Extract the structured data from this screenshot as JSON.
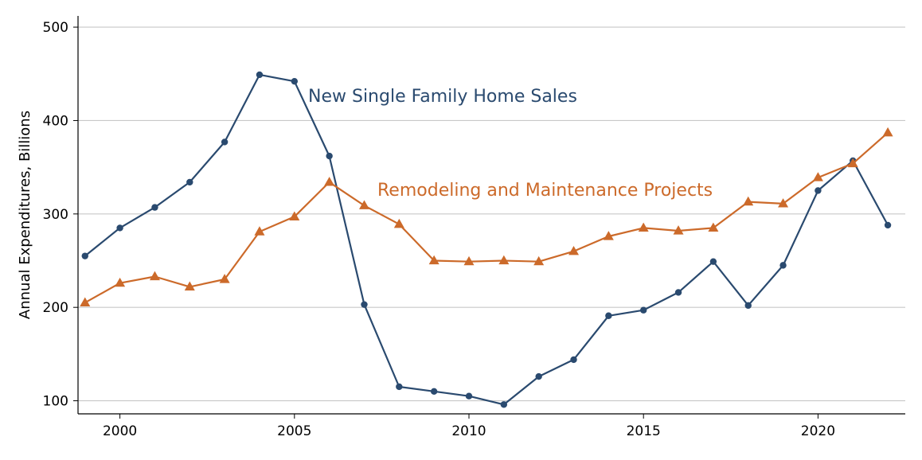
{
  "chart_data": {
    "type": "line",
    "title": "",
    "xlabel": "",
    "ylabel": "Annual Expenditures, Billions",
    "x": [
      1999,
      2000,
      2001,
      2002,
      2003,
      2004,
      2005,
      2006,
      2007,
      2008,
      2009,
      2010,
      2011,
      2012,
      2013,
      2014,
      2015,
      2016,
      2017,
      2018,
      2019,
      2020,
      2021,
      2022
    ],
    "xlim": [
      1998.8,
      2022.5
    ],
    "ylim": [
      86,
      512
    ],
    "x_ticks": [
      2000,
      2005,
      2010,
      2015,
      2020
    ],
    "y_ticks": [
      100,
      200,
      300,
      400,
      500
    ],
    "grid": "horizontal",
    "legend": "none",
    "series": [
      {
        "name": "New Single Family Home Sales",
        "color": "#2a4a6f",
        "marker": "circle",
        "values": [
          255,
          285,
          307,
          334,
          377,
          449,
          442,
          362,
          203,
          115,
          110,
          105,
          96,
          126,
          144,
          191,
          197,
          216,
          249,
          202,
          245,
          325,
          357,
          288
        ]
      },
      {
        "name": "Remodeling and Maintenance Projects",
        "color": "#cc6a2a",
        "marker": "triangle",
        "values": [
          205,
          226,
          233,
          222,
          230,
          281,
          297,
          334,
          309,
          289,
          250,
          249,
          250,
          249,
          260,
          276,
          285,
          282,
          285,
          313,
          311,
          339,
          354,
          387
        ]
      }
    ]
  }
}
